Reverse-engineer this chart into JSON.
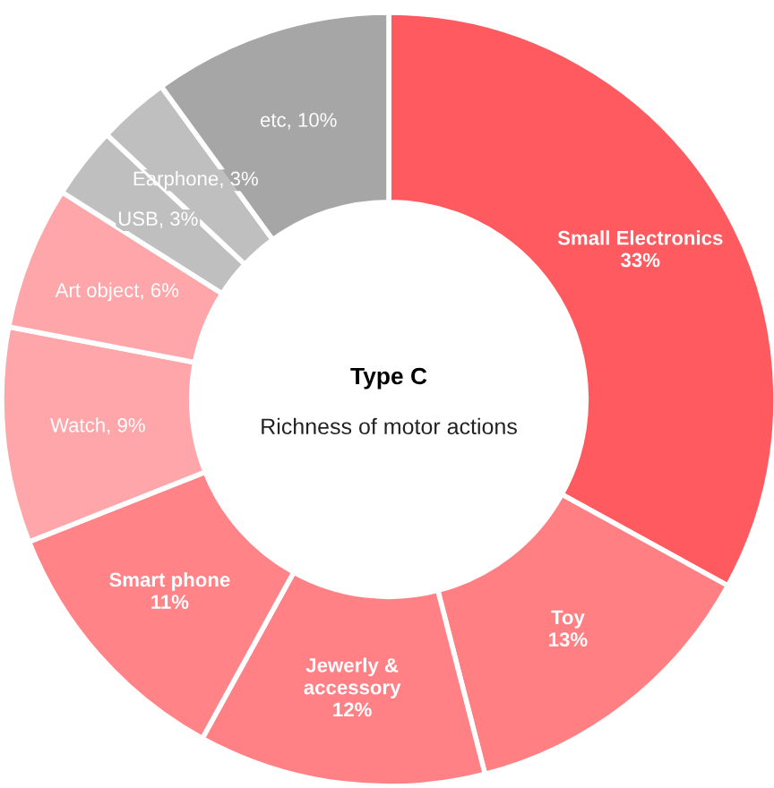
{
  "chart_data": {
    "type": "donut",
    "title": "Type C",
    "subtitle": "Richness of motor actions",
    "categories": [
      "Small Electronics",
      "Toy",
      "Jewerly & accessory",
      "Smart phone",
      "Watch",
      "Art object",
      "USB",
      "Earphone",
      "etc"
    ],
    "values": [
      33,
      13,
      12,
      11,
      9,
      6,
      3,
      3,
      10
    ],
    "colors": [
      "#ff5a5f",
      "#ff7f83",
      "#ff8185",
      "#ff8387",
      "#ffa6aa",
      "#ffa6aa",
      "#bfbfbf",
      "#bfbfbf",
      "#a6a6a6"
    ],
    "value_labels": [
      "33%",
      "13%",
      "12%",
      "11%",
      "9%",
      "6%",
      "3%",
      "3%",
      "10%"
    ]
  }
}
